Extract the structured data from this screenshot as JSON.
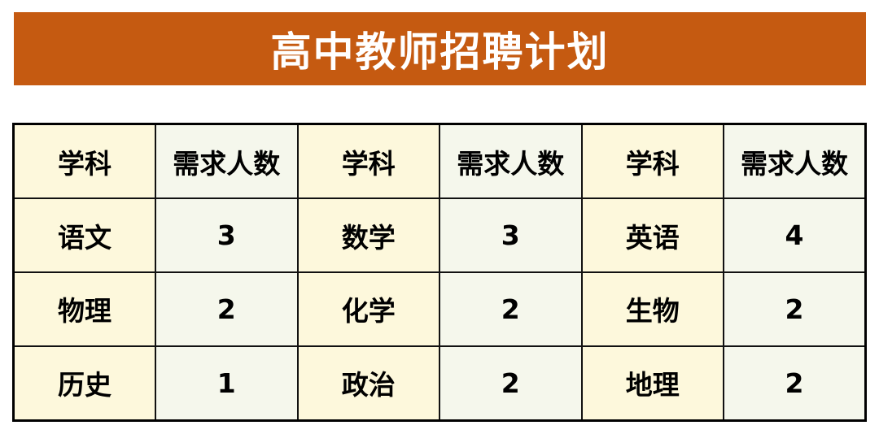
{
  "title": "高中教师招聘计划",
  "colors": {
    "banner": "#c55a11",
    "subject_cell": "#fdf8dc",
    "count_cell": "#f5f7ec"
  },
  "header": [
    "学科",
    "需求人数",
    "学科",
    "需求人数",
    "学科",
    "需求人数"
  ],
  "rows": [
    [
      "语文",
      "3",
      "数学",
      "3",
      "英语",
      "4"
    ],
    [
      "物理",
      "2",
      "化学",
      "2",
      "生物",
      "2"
    ],
    [
      "历史",
      "1",
      "政治",
      "2",
      "地理",
      "2"
    ]
  ]
}
